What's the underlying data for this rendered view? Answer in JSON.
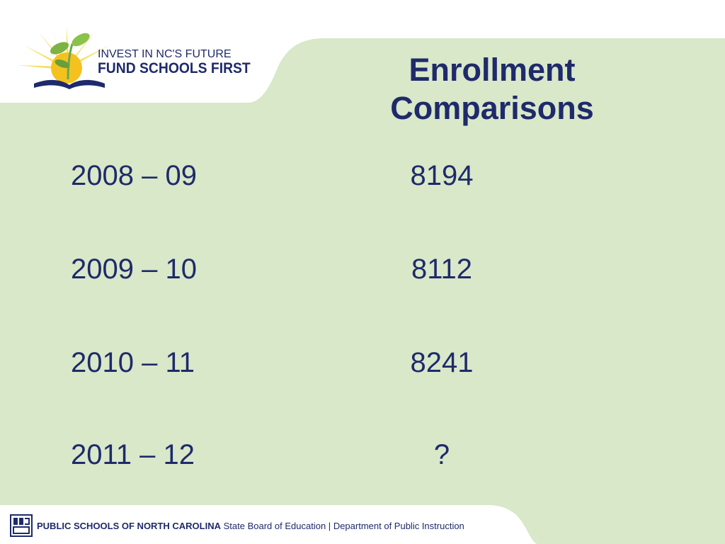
{
  "logo": {
    "line1": "INVEST IN NC'S FUTURE",
    "line2": "FUND SCHOOLS FIRST"
  },
  "title": {
    "line1": "Enrollment",
    "line2": "Comparisons"
  },
  "rows": [
    {
      "label": "2008 – 09",
      "value": "8194"
    },
    {
      "label": "2009 – 10",
      "value": "8112"
    },
    {
      "label": "2010 – 11",
      "value": "8241"
    },
    {
      "label": "2011 – 12",
      "value": "?"
    }
  ],
  "footer": {
    "org": "PUBLIC SCHOOLS OF NORTH CAROLINA",
    "board": "State Board of Education",
    "separator": "|",
    "dept": "Department of Public Instruction"
  },
  "colors": {
    "accent": "#1f2a6b",
    "background_green": "#d8e8c8"
  }
}
